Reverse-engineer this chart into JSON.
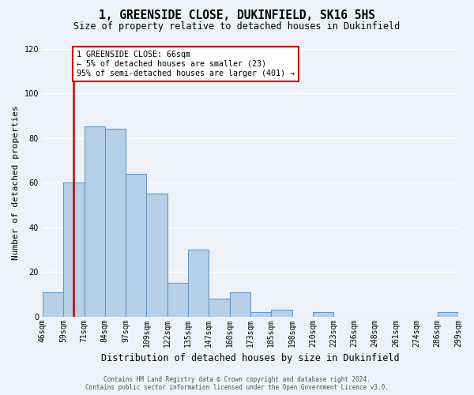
{
  "title": "1, GREENSIDE CLOSE, DUKINFIELD, SK16 5HS",
  "subtitle": "Size of property relative to detached houses in Dukinfield",
  "xlabel": "Distribution of detached houses by size in Dukinfield",
  "ylabel": "Number of detached properties",
  "bin_labels": [
    "46sqm",
    "59sqm",
    "71sqm",
    "84sqm",
    "97sqm",
    "109sqm",
    "122sqm",
    "135sqm",
    "147sqm",
    "160sqm",
    "173sqm",
    "185sqm",
    "198sqm",
    "210sqm",
    "223sqm",
    "236sqm",
    "248sqm",
    "261sqm",
    "274sqm",
    "286sqm",
    "299sqm"
  ],
  "counts": [
    11,
    60,
    85,
    84,
    64,
    55,
    15,
    30,
    8,
    11,
    2,
    3,
    0,
    2,
    0,
    0,
    0,
    0,
    0,
    2
  ],
  "bar_color": "#b8cfe8",
  "bar_edge_color": "#6699cc",
  "vline_color": "#cc0000",
  "vline_pos": 1.5,
  "ylim": [
    0,
    120
  ],
  "yticks": [
    0,
    20,
    40,
    60,
    80,
    100,
    120
  ],
  "annotation_text": "1 GREENSIDE CLOSE: 66sqm\n← 5% of detached houses are smaller (23)\n95% of semi-detached houses are larger (401) →",
  "annotation_box_facecolor": "#ffffff",
  "annotation_box_edgecolor": "#cc0000",
  "footer_line1": "Contains HM Land Registry data © Crown copyright and database right 2024.",
  "footer_line2": "Contains public sector information licensed under the Open Government Licence v3.0.",
  "background_color": "#eef2f8",
  "grid_color": "#ffffff"
}
